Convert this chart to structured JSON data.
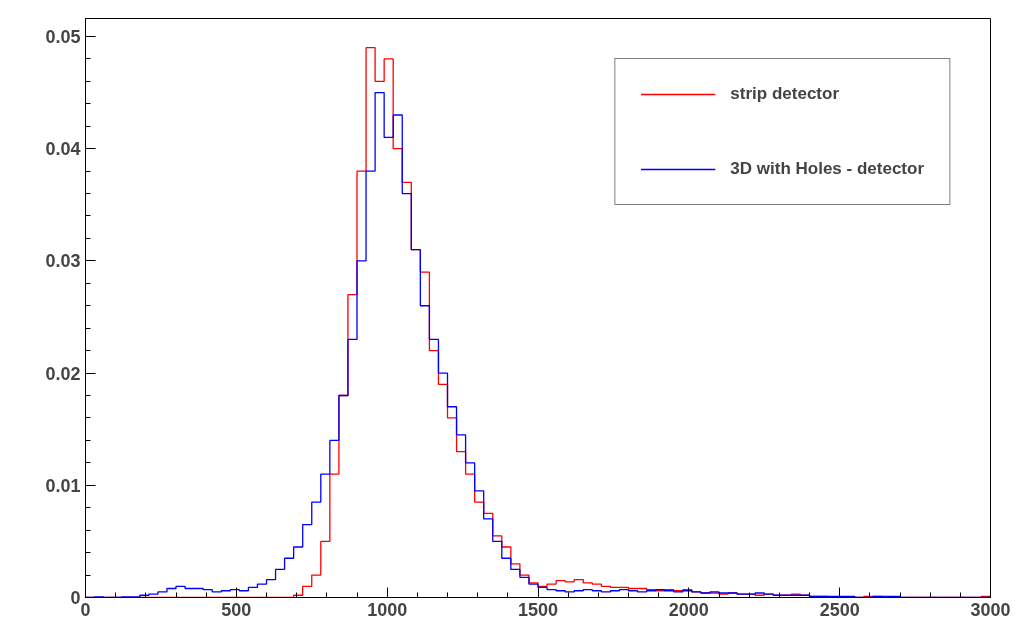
{
  "chart_data": {
    "type": "histogram",
    "bins": [
      0,
      30,
      60,
      90,
      120,
      150,
      180,
      210,
      240,
      270,
      300,
      330,
      360,
      390,
      420,
      450,
      480,
      510,
      540,
      570,
      600,
      630,
      660,
      690,
      720,
      750,
      780,
      810,
      840,
      870,
      900,
      930,
      960,
      990,
      1020,
      1050,
      1080,
      1110,
      1140,
      1170,
      1200,
      1230,
      1260,
      1290,
      1320,
      1350,
      1380,
      1410,
      1440,
      1470,
      1500,
      1530,
      1560,
      1590,
      1620,
      1650,
      1680,
      1710,
      1740,
      1770,
      1800,
      1830,
      1860,
      1890,
      1920,
      1950,
      1980,
      2010,
      2040,
      2070,
      2100,
      2130,
      2160,
      2190,
      2220,
      2250,
      2280,
      2310,
      2340,
      2370,
      2400,
      2430,
      2460,
      2490,
      2520,
      2550,
      2580,
      2610,
      2640,
      2670,
      2700,
      2730,
      2760,
      2790,
      2820,
      2850,
      2880,
      2910,
      2940,
      2970,
      3000
    ],
    "series": [
      {
        "name": "strip detector",
        "color": "#ff0000",
        "values": [
          0,
          0,
          0,
          0,
          0,
          0,
          0,
          0,
          0,
          0,
          0,
          0,
          0,
          0,
          0,
          0,
          0,
          0,
          0,
          0,
          0,
          0,
          0,
          0.0002,
          0.001,
          0.002,
          0.005,
          0.011,
          0.018,
          0.027,
          0.038,
          0.049,
          0.046,
          0.048,
          0.04,
          0.037,
          0.031,
          0.029,
          0.022,
          0.019,
          0.016,
          0.013,
          0.011,
          0.0085,
          0.0075,
          0.0055,
          0.0045,
          0.003,
          0.002,
          0.0013,
          0.001,
          0.0012,
          0.0015,
          0.0014,
          0.0016,
          0.0013,
          0.0012,
          0.001,
          0.0009,
          0.0009,
          0.0008,
          0.0008,
          0.0007,
          0.0006,
          0.0007,
          0.0006,
          0.0007,
          0.0005,
          0.0004,
          0.0004,
          0.0003,
          0.0004,
          0.0003,
          0.0003,
          0.0002,
          0.0003,
          0.0002,
          0.0002,
          0.0003,
          0.0002,
          0.0001,
          0.0001,
          0,
          0,
          0,
          0,
          0.0001,
          0.0001,
          0,
          0,
          0,
          0,
          0,
          0,
          0,
          0,
          0,
          0,
          0,
          0.0001
        ]
      },
      {
        "name": "3D with Holes - detector",
        "color": "#0000ff",
        "values": [
          0,
          5e-05,
          0,
          0,
          5e-05,
          5e-05,
          0.0002,
          0.0003,
          0.0005,
          0.0008,
          0.001,
          0.0008,
          0.0008,
          0.0007,
          0.0005,
          0.0006,
          0.0007,
          0.0006,
          0.0009,
          0.0012,
          0.0016,
          0.0025,
          0.0035,
          0.0045,
          0.0065,
          0.0085,
          0.011,
          0.014,
          0.018,
          0.023,
          0.03,
          0.038,
          0.045,
          0.041,
          0.043,
          0.036,
          0.031,
          0.026,
          0.023,
          0.02,
          0.017,
          0.0145,
          0.012,
          0.0095,
          0.007,
          0.005,
          0.0035,
          0.0025,
          0.0018,
          0.0012,
          0.0009,
          0.0007,
          0.0006,
          0.0005,
          0.0006,
          0.0007,
          0.0006,
          0.0005,
          0.0006,
          0.0007,
          0.0006,
          0.0005,
          0.0006,
          0.0007,
          0.0006,
          0.0005,
          0.0006,
          0.0005,
          0.0004,
          0.0005,
          0.0004,
          0.0004,
          0.0003,
          0.0003,
          0.0004,
          0.0003,
          0.0002,
          0.0002,
          0.0002,
          0.0002,
          0.0001,
          0.0001,
          0.0001,
          0.0001,
          0.0001,
          0,
          0,
          0.0001,
          0.0001,
          0.0001,
          0,
          0,
          0,
          0,
          0,
          0,
          0,
          0,
          0,
          0
        ]
      }
    ],
    "xlim": [
      0,
      3000
    ],
    "ylim": [
      0,
      0.0516
    ],
    "xticks": [
      0,
      500,
      1000,
      1500,
      2000,
      2500,
      3000
    ],
    "yticks": [
      0,
      0.01,
      0.02,
      0.03,
      0.04,
      0.05
    ],
    "grid": false,
    "legend": "top right"
  }
}
